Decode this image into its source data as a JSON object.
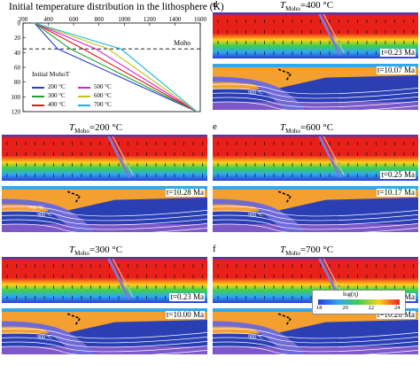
{
  "figure": {
    "top_chart": {
      "title": "Initial temperature distribution in the lithosphere (K)",
      "x_ticks": [
        "200",
        "400",
        "600",
        "800",
        "1000",
        "1200",
        "1400",
        "1600"
      ],
      "y_ticks": [
        "0",
        "20",
        "40",
        "60",
        "80",
        "100",
        "120"
      ],
      "moho_label": "Moho",
      "legend_title": "Initial MohoT",
      "legend": [
        {
          "label": "200 °C",
          "color": "#2b3bd6"
        },
        {
          "label": "300 °C",
          "color": "#1aa52a"
        },
        {
          "label": "400 °C",
          "color": "#e01818"
        },
        {
          "label": "500 °C",
          "color": "#d61fcf"
        },
        {
          "label": "600 °C",
          "color": "#c8c21a"
        },
        {
          "label": "700 °C",
          "color": "#17b8d6"
        }
      ]
    },
    "panels": [
      {
        "letter": "",
        "moho_t": "200 °C",
        "time_top": "",
        "time_bottom": "t=10.28 Ma"
      },
      {
        "letter": "",
        "moho_t": "300 °C",
        "time_top": "t=0.23 Ma",
        "time_bottom": "t=10.00 Ma"
      },
      {
        "letter": "d",
        "moho_t": "400 °C",
        "time_top": "t=0.23 Ma",
        "time_bottom": "t=10.07 Ma"
      },
      {
        "letter": "e",
        "moho_t": "600 °C",
        "time_top": "t=0.25 Ma",
        "time_bottom": "t=10.17 Ma"
      },
      {
        "letter": "f",
        "moho_t": "700 °C",
        "time_top": "t=0.27 Ma",
        "time_bottom": "t=10.26 Ma"
      }
    ],
    "iso_labels": {
      "t700": "700 °C",
      "t900": "900 °C"
    },
    "colorbar": {
      "title": "log(η)",
      "ticks": [
        "18",
        "20",
        "22",
        "24"
      ]
    },
    "colors": {
      "hot": "#e8201a",
      "warm": "#ffd21a",
      "mid": "#3fcf4a",
      "cool": "#2fa8f0",
      "cold": "#2b3bd6",
      "slab": "#6f6ad8",
      "orange": "#f4a030",
      "mantle": "#2a3fb4",
      "lowmantle": "#7d58c8"
    }
  },
  "chart_data": {
    "type": "line",
    "title": "Initial temperature distribution in the lithosphere (K)",
    "xlabel": "",
    "ylabel": "",
    "xlim": [
      200,
      1600
    ],
    "ylim": [
      120,
      0
    ],
    "moho_depth": 35,
    "series": [
      {
        "name": "200 °C",
        "x": [
          290,
          473,
          1573
        ],
        "y": [
          0,
          35,
          120
        ]
      },
      {
        "name": "300 °C",
        "x": [
          290,
          573,
          1573
        ],
        "y": [
          0,
          35,
          120
        ]
      },
      {
        "name": "400 °C",
        "x": [
          290,
          673,
          1573
        ],
        "y": [
          0,
          35,
          120
        ]
      },
      {
        "name": "500 °C",
        "x": [
          290,
          773,
          1573
        ],
        "y": [
          0,
          35,
          120
        ]
      },
      {
        "name": "600 °C",
        "x": [
          290,
          873,
          1573
        ],
        "y": [
          0,
          35,
          120
        ]
      },
      {
        "name": "700 °C",
        "x": [
          290,
          973,
          1573
        ],
        "y": [
          0,
          35,
          120
        ]
      }
    ]
  }
}
